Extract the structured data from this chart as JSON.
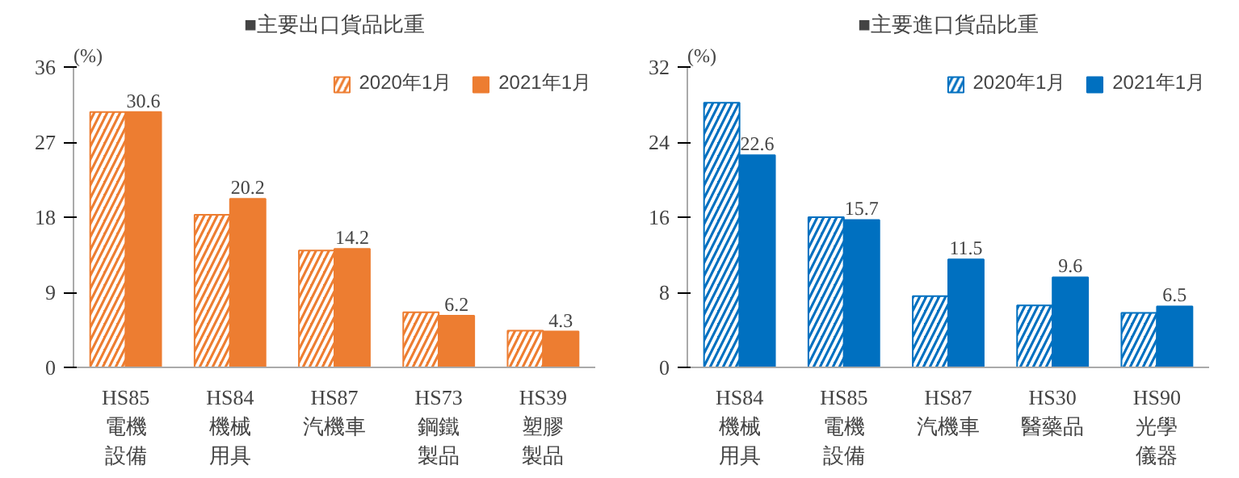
{
  "chart_data": [
    {
      "type": "bar",
      "title": "■主要出口貨品比重",
      "ylabel": "(%)",
      "categories": [
        "HS85\n電機設備",
        "HS84\n機械用具",
        "HS87\n汽機車",
        "HS73\n鋼鐵製品",
        "HS39\n塑膠製品"
      ],
      "ylim": [
        0,
        36
      ],
      "yticks": [
        0,
        9,
        18,
        27,
        36
      ],
      "legend": "top right",
      "grid": false,
      "series": [
        {
          "name": "2020年1月",
          "color": "#ed7d31",
          "values": [
            30.6,
            18.3,
            14.0,
            6.6,
            4.4
          ]
        },
        {
          "name": "2021年1月",
          "color": "#ed7d31",
          "values": [
            30.6,
            20.2,
            14.2,
            6.2,
            4.3
          ],
          "value_labels": [
            "30.6",
            "20.2",
            "14.2",
            "6.2",
            "4.3"
          ]
        }
      ]
    },
    {
      "type": "bar",
      "title": "■主要進口貨品比重",
      "ylabel": "(%)",
      "categories": [
        "HS84\n機械用具",
        "HS85\n電機設備",
        "HS87\n汽機車",
        "HS30\n醫藥品",
        "HS90\n光學儀器"
      ],
      "ylim": [
        0,
        32
      ],
      "yticks": [
        0,
        8,
        16,
        24,
        32
      ],
      "legend": "top right",
      "grid": false,
      "series": [
        {
          "name": "2020年1月",
          "color": "#0070c0",
          "values": [
            28.2,
            16.0,
            7.6,
            6.6,
            5.8
          ]
        },
        {
          "name": "2021年1月",
          "color": "#0070c0",
          "values": [
            22.6,
            15.7,
            11.5,
            9.6,
            6.5
          ],
          "value_labels": [
            "22.6",
            "15.7",
            "11.5",
            "9.6",
            "6.5"
          ]
        }
      ]
    }
  ]
}
